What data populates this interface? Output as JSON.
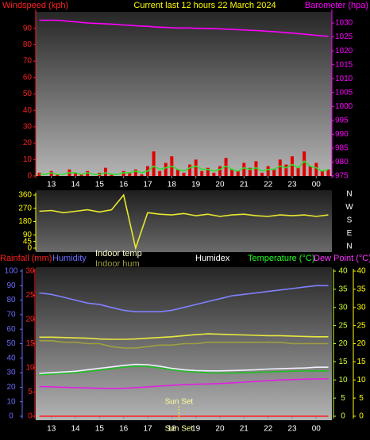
{
  "chart_data": [
    {
      "type": "line",
      "title": "Current last 12 hours 22 March 2024",
      "x": [
        12.5,
        12.75,
        13,
        13.25,
        13.5,
        13.75,
        14,
        14.25,
        14.5,
        14.75,
        15,
        15.25,
        15.5,
        15.75,
        16,
        16.25,
        16.5,
        16.75,
        17,
        17.25,
        17.5,
        17.75,
        18,
        18.25,
        18.5,
        18.75,
        19,
        19.25,
        19.5,
        19.75,
        20,
        20.25,
        20.5,
        20.75,
        21,
        21.25,
        21.5,
        21.75,
        22,
        22.25,
        22.5,
        22.75,
        23,
        23.25,
        23.5,
        23.75,
        24,
        24.25,
        24.5
      ],
      "xlim": [
        12.35,
        24.65
      ],
      "xticks": [
        13,
        14,
        15,
        16,
        17,
        18,
        19,
        20,
        21,
        22,
        23,
        {
          "value": 24,
          "label": "00"
        }
      ],
      "axes": [
        {
          "label": "Windspeed (kph)",
          "color": "#ff2020",
          "lim": [
            0,
            100
          ],
          "ticks": [
            0,
            10,
            20,
            30,
            40,
            50,
            60,
            70,
            80,
            90
          ]
        },
        {
          "label": "Barometer (hpa)",
          "color": "#ff00ff",
          "lim": [
            975,
            1034
          ],
          "ticks": [
            975,
            980,
            985,
            990,
            995,
            1000,
            1005,
            1010,
            1015,
            1020,
            1025,
            1030
          ]
        }
      ],
      "series": [
        {
          "kind": "bar",
          "axis": 0,
          "color": "#e00000",
          "values": [
            2,
            0,
            3,
            1,
            0,
            4,
            2,
            1,
            3,
            0,
            2,
            5,
            1,
            0,
            3,
            2,
            4,
            1,
            6,
            15,
            3,
            8,
            12,
            4,
            2,
            7,
            10,
            3,
            5,
            2,
            6,
            11,
            4,
            3,
            8,
            5,
            9,
            2,
            6,
            4,
            10,
            7,
            12,
            5,
            15,
            6,
            8,
            3,
            4
          ]
        },
        {
          "kind": "line",
          "axis": 0,
          "color": "#30e030",
          "values": [
            1,
            1,
            2,
            1,
            1,
            2,
            2,
            1,
            2,
            1,
            1,
            2,
            1,
            1,
            2,
            2,
            3,
            2,
            3,
            6,
            4,
            5,
            6,
            4,
            3,
            5,
            6,
            4,
            4,
            3,
            4,
            6,
            4,
            3,
            5,
            4,
            5,
            3,
            4,
            4,
            6,
            5,
            7,
            5,
            9,
            6,
            5,
            3,
            4
          ]
        },
        {
          "kind": "line",
          "axis": 1,
          "color": "#ff00ff",
          "values": [
            1031,
            1031,
            1031,
            1031,
            1030.8,
            1030.6,
            1030.4,
            1030.2,
            1030,
            1029.9,
            1029.8,
            1029.7,
            1029.6,
            1029.5,
            1029.3,
            1029.2,
            1029,
            1028.9,
            1028.8,
            1028.6,
            1028.5,
            1028.4,
            1028.3,
            1028.2,
            1028.2,
            1028.2,
            1028.1,
            1028.1,
            1028,
            1028,
            1027.9,
            1027.8,
            1027.7,
            1027.6,
            1027.5,
            1027.4,
            1027.3,
            1027.2,
            1027,
            1026.9,
            1026.7,
            1026.5,
            1026.4,
            1026.2,
            1026,
            1025.8,
            1025.6,
            1025.4,
            1025.2
          ]
        }
      ]
    },
    {
      "type": "line",
      "x": [
        12.5,
        13,
        13.5,
        14,
        14.5,
        15,
        15.5,
        16,
        16.5,
        17,
        17.5,
        18,
        18.5,
        19,
        19.5,
        20,
        20.5,
        21,
        21.5,
        22,
        22.5,
        23,
        23.5,
        24,
        24.5
      ],
      "xlim": [
        12.35,
        24.65
      ],
      "axes": [
        {
          "color": "#ffff00",
          "lim": [
            0,
            360
          ],
          "ticks": [
            0,
            45,
            90,
            180,
            270,
            360
          ]
        }
      ],
      "compass": [
        "N",
        "W",
        "S",
        "E",
        "N"
      ],
      "series": [
        {
          "kind": "line",
          "axis": 0,
          "color": "#e8e830",
          "values": [
            250,
            255,
            240,
            250,
            260,
            245,
            260,
            360,
            0,
            240,
            230,
            225,
            235,
            220,
            230,
            215,
            225,
            230,
            220,
            215,
            225,
            220,
            225,
            215,
            225
          ]
        }
      ]
    },
    {
      "type": "line",
      "x": [
        12.5,
        13,
        13.5,
        14,
        14.5,
        15,
        15.5,
        16,
        16.5,
        17,
        17.5,
        18,
        18.5,
        19,
        19.5,
        20,
        20.5,
        21,
        21.5,
        22,
        22.5,
        23,
        23.5,
        24,
        24.5
      ],
      "xlim": [
        12.35,
        24.65
      ],
      "xticks": [
        13,
        14,
        15,
        16,
        17,
        18,
        19,
        20,
        21,
        22,
        23,
        {
          "value": 24,
          "label": "00"
        }
      ],
      "axes": [
        {
          "label": "Humidity",
          "color": "#6a6aff",
          "lim": [
            0,
            100
          ],
          "ticks": [
            0,
            10,
            20,
            30,
            40,
            50,
            60,
            70,
            80,
            90,
            100
          ]
        },
        {
          "label": "Rainfall (mm)",
          "color": "#ff2020",
          "lim": [
            0,
            30
          ],
          "ticks": [
            0,
            5,
            10,
            15,
            20,
            25,
            30
          ]
        },
        {
          "label": "Temperature (°C)",
          "color": "#ccff33",
          "lim": [
            0,
            40
          ],
          "ticks": [
            0,
            5,
            10,
            15,
            20,
            25,
            30,
            35,
            40
          ]
        },
        {
          "label": "Dew Point (°C)",
          "color": "#ffff00",
          "lim": [
            0,
            40
          ],
          "ticks": [
            0,
            5,
            10,
            15,
            20,
            25,
            30,
            35,
            40
          ]
        }
      ],
      "series": [
        {
          "axis": 1,
          "color": "#ff2020",
          "values": [
            0,
            0,
            0,
            0,
            0,
            0,
            0,
            0,
            0,
            0,
            0,
            0,
            0,
            0,
            0,
            0,
            0,
            0,
            0,
            0,
            0,
            0,
            0,
            0,
            0
          ]
        },
        {
          "axis": 0,
          "color": "#8080ff",
          "values": [
            85,
            84,
            82,
            80,
            78,
            77,
            75,
            73,
            72,
            72,
            72,
            73,
            75,
            77,
            79,
            81,
            83,
            84,
            85,
            86,
            87,
            88,
            89,
            90,
            90
          ]
        },
        {
          "name": "Indoor temp",
          "axis": 2,
          "color": "#e8e840",
          "values": [
            21.8,
            21.8,
            21.7,
            21.6,
            21.5,
            21.3,
            21.2,
            21.2,
            21.3,
            21.5,
            21.7,
            21.9,
            22.2,
            22.5,
            22.7,
            22.6,
            22.5,
            22.4,
            22.3,
            22.2,
            22.2,
            22.1,
            22,
            21.9,
            21.9
          ]
        },
        {
          "name": "Indoor hum",
          "axis": 0,
          "color": "#a0a040",
          "values": [
            52,
            52,
            51,
            51,
            50,
            50,
            48,
            47,
            47,
            48,
            49,
            49,
            50,
            50,
            51,
            51,
            51,
            51,
            51,
            51,
            51,
            50,
            50,
            50,
            50
          ]
        },
        {
          "name": "Humidex",
          "axis": 2,
          "color": "#f0f0ff",
          "values": [
            11.8,
            12,
            12.2,
            12.4,
            12.8,
            13.2,
            13.6,
            14,
            14.3,
            14.2,
            13.8,
            13.2,
            12.8,
            12.6,
            12.5,
            12.5,
            12.6,
            12.7,
            12.8,
            13,
            13.1,
            13.2,
            13.3,
            13.5,
            13.5
          ]
        },
        {
          "axis": 2,
          "color": "#20c020",
          "values": [
            11.4,
            11.6,
            11.8,
            12,
            12.3,
            12.7,
            13.1,
            13.5,
            13.8,
            13.7,
            13.3,
            12.8,
            12.4,
            12.2,
            12,
            11.9,
            11.9,
            12,
            12.1,
            12.2,
            12.3,
            12.4,
            12.5,
            12.5,
            12.5
          ]
        },
        {
          "axis": 3,
          "color": "#e020e0",
          "values": [
            8.2,
            8.1,
            8,
            7.9,
            7.8,
            7.7,
            7.6,
            7.7,
            7.9,
            8.1,
            8.3,
            8.5,
            8.7,
            8.8,
            8.9,
            9,
            9.2,
            9.4,
            9.6,
            9.8,
            10,
            10.1,
            10.2,
            10.3,
            10.3
          ]
        }
      ],
      "annotations": [
        {
          "text": "Sun Set",
          "x": 18.3
        }
      ]
    }
  ]
}
